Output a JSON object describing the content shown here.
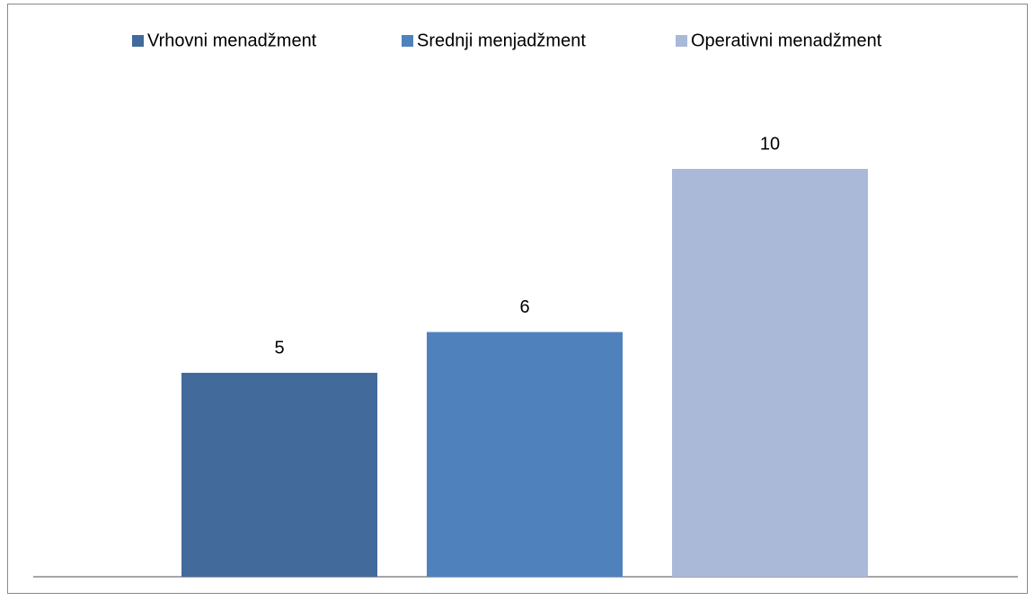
{
  "chart_data": {
    "type": "bar",
    "categories": [
      null
    ],
    "series": [
      {
        "name": "Vrhovni menadžment",
        "color": "#426a9b",
        "values": [
          5
        ]
      },
      {
        "name": "Srednji menjadžment",
        "color": "#4f81bd",
        "values": [
          6
        ]
      },
      {
        "name": "Operativni menadžment",
        "color": "#a9b9d7",
        "values": [
          10
        ]
      }
    ],
    "legend": "top"
  }
}
